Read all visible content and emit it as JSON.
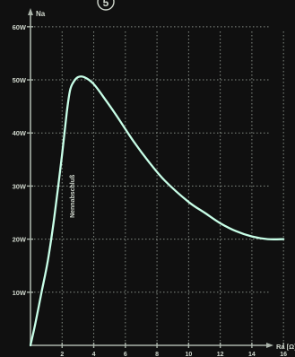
{
  "figure_number": "5",
  "colors": {
    "background": "#101010",
    "grid": "#aab4aa",
    "curve": "#c8ffe8",
    "text": "#cfd6cc"
  },
  "chart_data": {
    "type": "line",
    "ylabel": "Na",
    "xlabel": "Ra [Ω]",
    "grid": true,
    "xlim": [
      0,
      16.5
    ],
    "ylim": [
      0,
      62
    ],
    "y_ticks": [
      {
        "value": 10,
        "label": "10W"
      },
      {
        "value": 20,
        "label": "20W"
      },
      {
        "value": 30,
        "label": "30W"
      },
      {
        "value": 40,
        "label": "40W"
      },
      {
        "value": 50,
        "label": "50W"
      },
      {
        "value": 60,
        "label": "60W"
      }
    ],
    "x_ticks": [
      {
        "value": 2,
        "label": "2"
      },
      {
        "value": 4,
        "label": "4"
      },
      {
        "value": 6,
        "label": "6"
      },
      {
        "value": 8,
        "label": "8"
      },
      {
        "value": 10,
        "label": "10"
      },
      {
        "value": 12,
        "label": "12"
      },
      {
        "value": 14,
        "label": "14"
      },
      {
        "value": 16,
        "label": "16"
      }
    ],
    "annotation": "Nennabschluß",
    "series": [
      {
        "values_x": [
          0,
          0.3,
          0.7,
          1.1,
          1.5,
          2.0,
          2.3,
          2.5,
          2.7,
          3.0,
          3.4,
          4.0,
          4.8,
          5.5,
          6.5,
          7.5,
          8.5,
          10.0,
          11.0,
          12.0,
          13.0,
          14.0,
          15.0,
          16.0
        ],
        "values_y": [
          0,
          4,
          10,
          16,
          24,
          36,
          44,
          48,
          49.5,
          50.5,
          50.5,
          49.2,
          46,
          43,
          38.5,
          34.5,
          31,
          27,
          25,
          23,
          21.5,
          20.5,
          20,
          20
        ]
      }
    ]
  }
}
